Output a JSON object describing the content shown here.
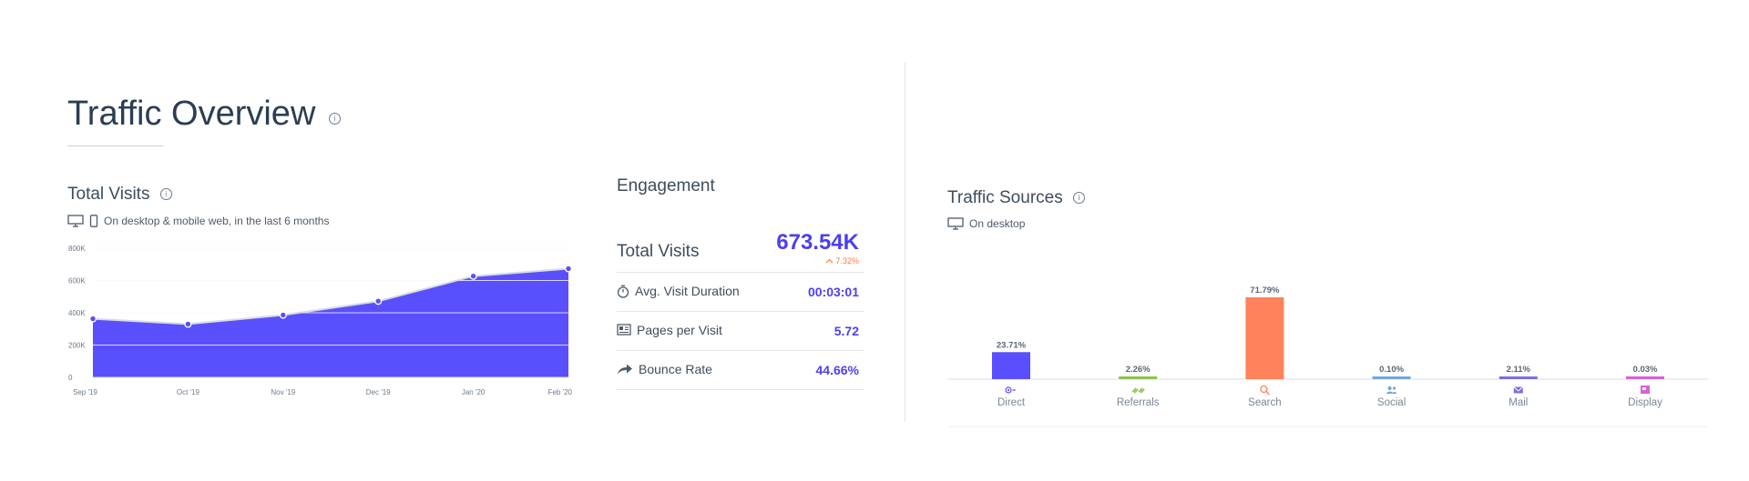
{
  "page": {
    "title": "Traffic Overview"
  },
  "total_visits_chart": {
    "title": "Total Visits",
    "subtitle": "On desktop & mobile web, in the last 6 months"
  },
  "engagement": {
    "title": "Engagement",
    "total_visits_label": "Total Visits",
    "total_visits_value": "673.54K",
    "change": "7.32%",
    "rows": [
      {
        "label": "Avg. Visit Duration",
        "value": "00:03:01",
        "icon": "stopwatch-icon"
      },
      {
        "label": "Pages per Visit",
        "value": "5.72",
        "icon": "pages-icon"
      },
      {
        "label": "Bounce Rate",
        "value": "44.66%",
        "icon": "bounce-arrow-icon"
      }
    ]
  },
  "traffic_sources_chart": {
    "title": "Traffic Sources",
    "subtitle": "On desktop"
  },
  "colors": {
    "accent": "#5a4ffc",
    "search": "#ff825c",
    "referrals": "#8bc34a",
    "social": "#6fa8dc",
    "mail": "#7e6fd9",
    "display": "#d85fd6",
    "change_up": "#ff7a45"
  },
  "chart_data": [
    {
      "type": "area",
      "title": "Total Visits",
      "x": [
        "Sep '19",
        "Oct '19",
        "Nov '19",
        "Dec '19",
        "Jan '20",
        "Feb '20"
      ],
      "values": [
        363000,
        330000,
        386000,
        472000,
        627000,
        673540
      ],
      "ylim": [
        0,
        800000
      ],
      "yticks": [
        0,
        200000,
        400000,
        600000,
        800000
      ],
      "ytick_labels": [
        "0",
        "200K",
        "400K",
        "600K",
        "800K"
      ],
      "grid": true,
      "color": "#5a4ffc"
    },
    {
      "type": "bar",
      "title": "Traffic Sources",
      "categories": [
        "Direct",
        "Referrals",
        "Search",
        "Social",
        "Mail",
        "Display"
      ],
      "values": [
        23.71,
        2.26,
        71.79,
        0.1,
        2.11,
        0.03
      ],
      "labels": [
        "23.71%",
        "2.26%",
        "71.79%",
        "0.10%",
        "2.11%",
        "0.03%"
      ],
      "colors": [
        "#5a4ffc",
        "#8bc34a",
        "#ff825c",
        "#6fa8dc",
        "#7e6fd9",
        "#d85fd6"
      ],
      "icons": [
        "direct-icon",
        "referrals-icon",
        "search-icon",
        "social-icon",
        "mail-icon",
        "display-icon"
      ]
    }
  ]
}
